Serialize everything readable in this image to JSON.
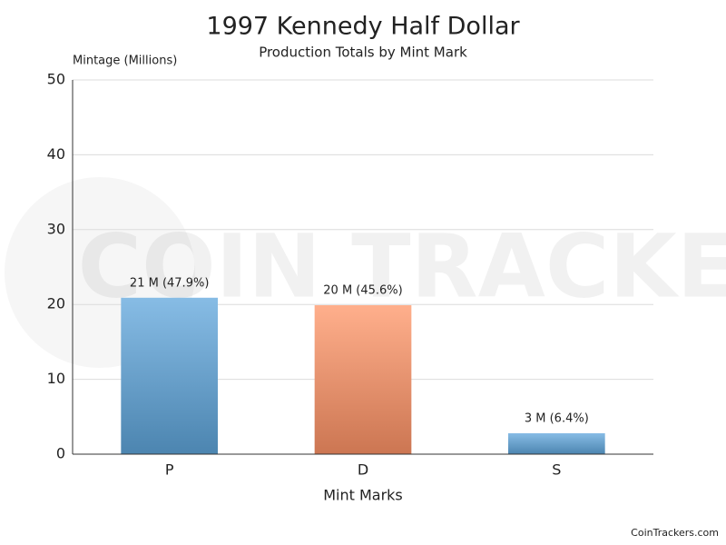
{
  "chart_data": {
    "type": "bar",
    "title": "1997 Kennedy Half Dollar",
    "subtitle": "Production Totals by Mint Mark",
    "y_axis_label": "Mintage (Millions)",
    "x_axis_label": "Mint Marks",
    "categories": [
      "P",
      "D",
      "S"
    ],
    "values": [
      20.9,
      19.9,
      2.8
    ],
    "value_labels": [
      "21 M (47.9%)",
      "20 M (45.6%)",
      "3 M (6.4%)"
    ],
    "colors": [
      "#5fa6dc",
      "#ff9466",
      "#5fa6dc"
    ],
    "ylim": [
      0,
      50
    ],
    "yticks": [
      0,
      10,
      20,
      30,
      40,
      50
    ],
    "grid": true,
    "watermark": "COIN TRACKERS",
    "footer": "CoinTrackers.com"
  }
}
